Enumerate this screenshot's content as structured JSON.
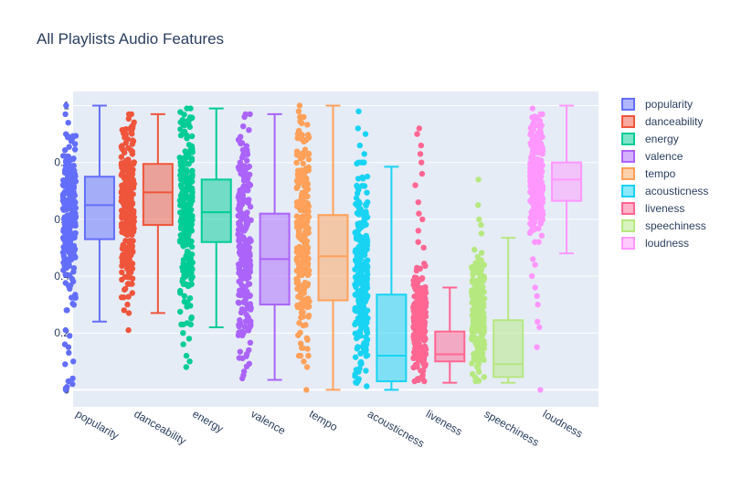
{
  "chart_data": {
    "type": "box",
    "title": "All Playlists Audio Features",
    "xlabel": "",
    "ylabel": "",
    "ylim": [
      -0.06,
      1.05
    ],
    "yticks": [
      0,
      0.2,
      0.4,
      0.6,
      0.8,
      1
    ],
    "ytick_labels": [
      "0",
      "0.2",
      "0.4",
      "0.6",
      "0.8",
      "1"
    ],
    "grid": true,
    "legend_position": "right",
    "points": "all",
    "series": [
      {
        "name": "popularity",
        "color": "#636efa",
        "min": 0.24,
        "q1": 0.53,
        "median": 0.65,
        "q3": 0.75,
        "max": 1.0,
        "dense_range": [
          0.28,
          0.92
        ],
        "outliers": [
          0,
          0.005,
          0.01,
          0.02,
          0.03,
          0.04,
          0.09,
          0.1,
          0.13,
          0.15,
          0.16,
          0.19,
          0.21,
          0.94,
          0.97,
          1.0
        ]
      },
      {
        "name": "danceability",
        "color": "#EF553B",
        "min": 0.27,
        "q1": 0.58,
        "median": 0.695,
        "q3": 0.795,
        "max": 0.97,
        "dense_range": [
          0.3,
          0.97
        ],
        "outliers": [
          0.21,
          0.27,
          0.28
        ]
      },
      {
        "name": "energy",
        "color": "#00cc96",
        "min": 0.22,
        "q1": 0.52,
        "median": 0.625,
        "q3": 0.74,
        "max": 0.99,
        "dense_range": [
          0.23,
          0.99
        ],
        "outliers": [
          0.08,
          0.1,
          0.12,
          0.16,
          0.18,
          0.2
        ]
      },
      {
        "name": "valence",
        "color": "#ab63fa",
        "min": 0.035,
        "q1": 0.3,
        "median": 0.46,
        "q3": 0.62,
        "max": 0.97,
        "dense_range": [
          0.04,
          0.97
        ],
        "outliers": []
      },
      {
        "name": "tempo",
        "color": "#FFA15A",
        "min": 0.0,
        "q1": 0.315,
        "median": 0.47,
        "q3": 0.615,
        "max": 1.0,
        "dense_range": [
          0.12,
          0.96
        ],
        "outliers": [
          0,
          0.08,
          0.1,
          0.98,
          1.0
        ]
      },
      {
        "name": "acousticness",
        "color": "#19d3f3",
        "min": 0.0,
        "q1": 0.03,
        "median": 0.12,
        "q3": 0.335,
        "max": 0.785,
        "dense_range": [
          0,
          0.8
        ],
        "outliers": [
          0.83,
          0.86,
          0.9,
          0.92,
          0.98
        ]
      },
      {
        "name": "liveness",
        "color": "#FF6692",
        "min": 0.025,
        "q1": 0.1,
        "median": 0.125,
        "q3": 0.205,
        "max": 0.36,
        "dense_range": [
          0.03,
          0.45
        ],
        "outliers": [
          0.5,
          0.52,
          0.56,
          0.6,
          0.62,
          0.66,
          0.72,
          0.76,
          0.8,
          0.83,
          0.86,
          0.9,
          0.92
        ]
      },
      {
        "name": "speechiness",
        "color": "#B6E880",
        "min": 0.025,
        "q1": 0.045,
        "median": 0.09,
        "q3": 0.245,
        "max": 0.535,
        "dense_range": [
          0.03,
          0.52
        ],
        "outliers": [
          0.55,
          0.58,
          0.6,
          0.65,
          0.74
        ]
      },
      {
        "name": "loudness",
        "color": "#FF97FF",
        "min": 0.48,
        "q1": 0.665,
        "median": 0.74,
        "q3": 0.8,
        "max": 1.0,
        "dense_range": [
          0.52,
          0.97
        ],
        "outliers": [
          0,
          0.15,
          0.22,
          0.24,
          0.3,
          0.33,
          0.36,
          0.4,
          0.44,
          0.46,
          0.99
        ]
      }
    ]
  }
}
